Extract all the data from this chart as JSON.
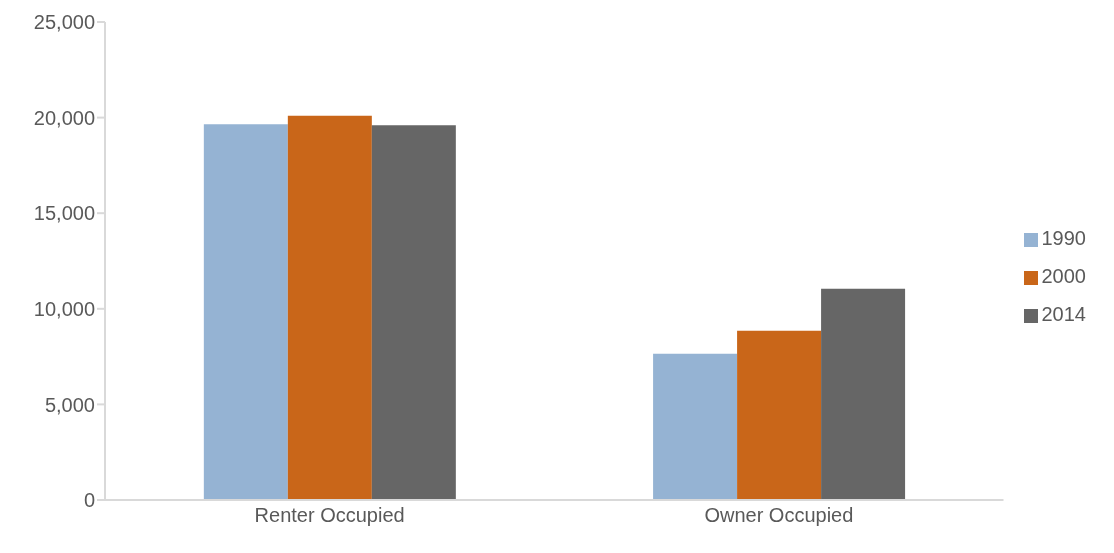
{
  "chart_data": {
    "type": "bar",
    "categories": [
      "Renter Occupied",
      "Owner Occupied"
    ],
    "series": [
      {
        "name": "1990",
        "color": "#95b3d3",
        "values": [
          19650,
          7650
        ]
      },
      {
        "name": "2000",
        "color": "#c96619",
        "values": [
          20100,
          8850
        ]
      },
      {
        "name": "2014",
        "color": "#666666",
        "values": [
          19600,
          11050
        ]
      }
    ],
    "ylim": [
      0,
      25000
    ],
    "yticks": [
      0,
      {
        "value": 5000,
        "label": "5,000"
      },
      {
        "value": 10000,
        "label": "10,000"
      },
      {
        "value": 15000,
        "label": "15,000"
      },
      {
        "value": 20000,
        "label": "20,000"
      },
      {
        "value": 25000,
        "label": "25,000"
      }
    ],
    "grid": false,
    "legend": "right"
  }
}
